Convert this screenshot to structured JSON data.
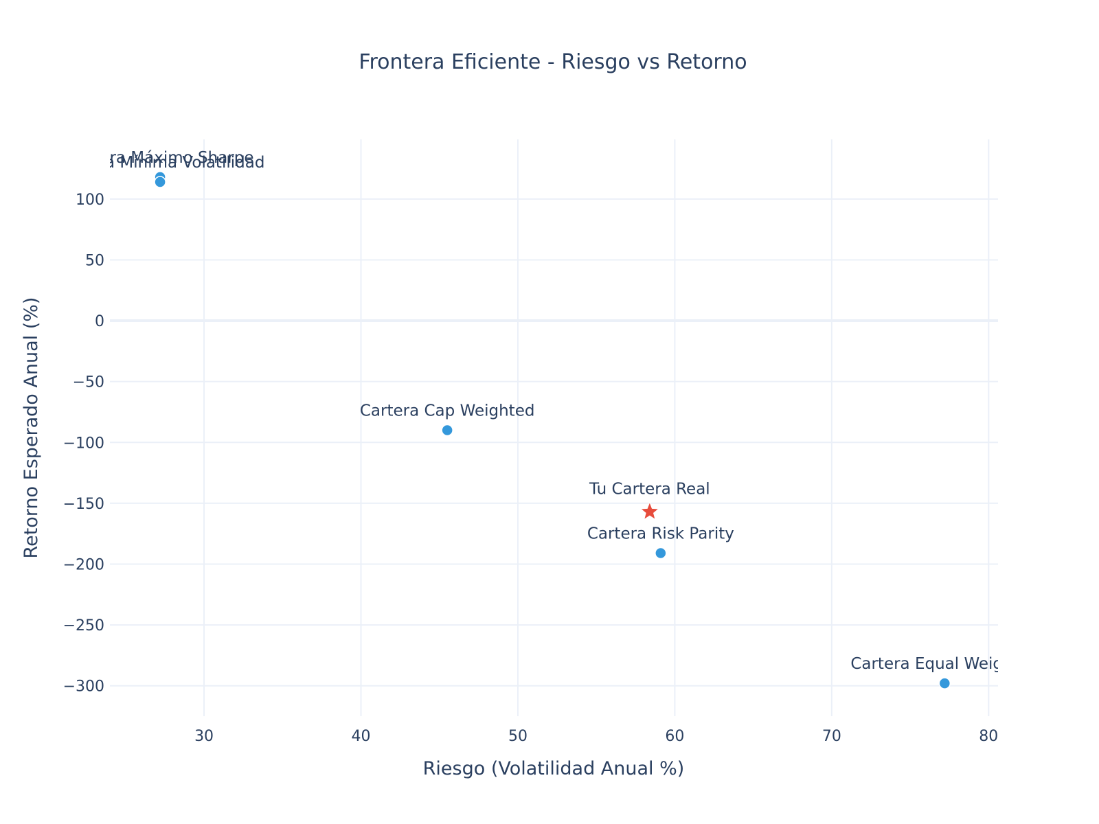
{
  "chart_data": {
    "type": "scatter",
    "title": "Frontera Eficiente - Riesgo vs Retorno",
    "xlabel": "Riesgo (Volatilidad Anual %)",
    "ylabel": "Retorno Esperado Anual (%)",
    "xlim": [
      24,
      80.6
    ],
    "ylim": [
      -325,
      149
    ],
    "xticks": [
      30,
      40,
      50,
      60,
      70,
      80
    ],
    "yticks": [
      100,
      50,
      0,
      -50,
      -100,
      -150,
      -200,
      -250,
      -300
    ],
    "grid": true,
    "legend": "none",
    "colors": {
      "portfolio": "#3498db",
      "real": "#e74c3c",
      "grid": "#ebf0f8",
      "zeroline": "#ebf0f8",
      "text": "#2a3f5f",
      "marker_outline": "#ffffff"
    },
    "points": [
      {
        "name": "Cartera Máximo Sharpe",
        "label": "Cartera Máximo Sharpe",
        "x": 27.2,
        "y": 118,
        "marker": "circle",
        "color": "#3498db"
      },
      {
        "name": "Cartera Mínima Volatilidad",
        "label": "Cartera Mínima Volatilidad",
        "x": 27.2,
        "y": 114,
        "marker": "circle",
        "color": "#3498db"
      },
      {
        "name": "Cartera Cap Weighted",
        "label": "Cartera Cap Weighted",
        "x": 45.5,
        "y": -90,
        "marker": "circle",
        "color": "#3498db"
      },
      {
        "name": "Tu Cartera Real",
        "label": "Tu Cartera Real",
        "x": 58.4,
        "y": -157,
        "marker": "star",
        "color": "#e74c3c"
      },
      {
        "name": "Cartera Risk Parity",
        "label": "Cartera Risk Parity",
        "x": 59.1,
        "y": -191,
        "marker": "circle",
        "color": "#3498db"
      },
      {
        "name": "Cartera Equal Weighted",
        "label": "Cartera Equal Weighted",
        "x": 77.2,
        "y": -298,
        "marker": "circle",
        "color": "#3498db"
      }
    ]
  }
}
